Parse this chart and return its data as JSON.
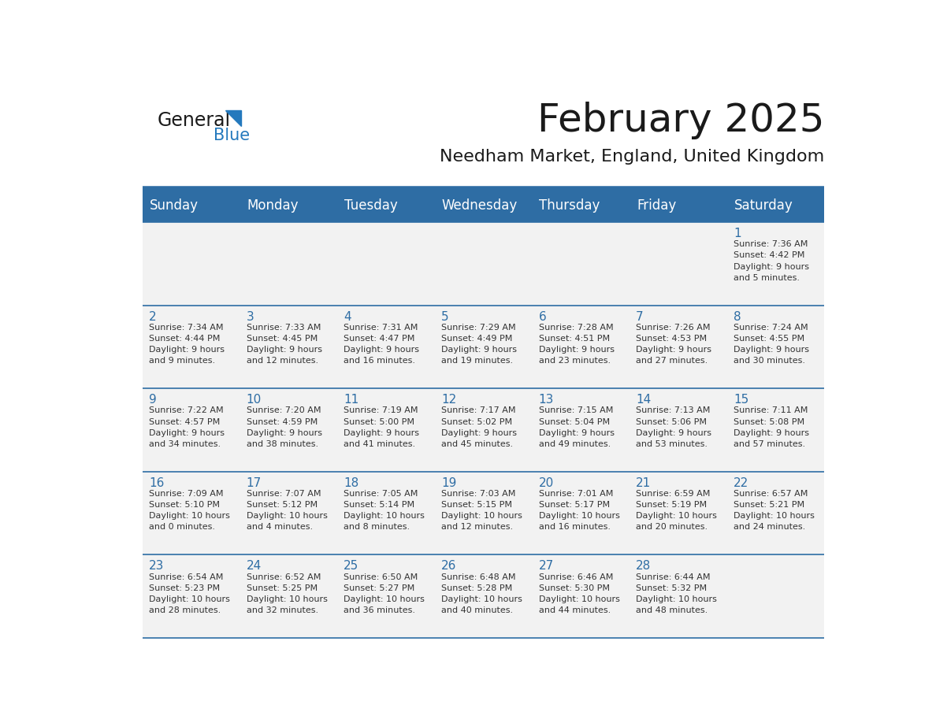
{
  "title": "February 2025",
  "subtitle": "Needham Market, England, United Kingdom",
  "days_of_week": [
    "Sunday",
    "Monday",
    "Tuesday",
    "Wednesday",
    "Thursday",
    "Friday",
    "Saturday"
  ],
  "header_bg": "#2E6DA4",
  "header_text": "#FFFFFF",
  "cell_bg_light": "#F2F2F2",
  "line_color": "#2E6DA4",
  "day_num_color": "#2E6DA4",
  "cell_text_color": "#333333",
  "logo_general_color": "#1a1a1a",
  "logo_blue_color": "#2479BD",
  "calendar_data": [
    [
      null,
      null,
      null,
      null,
      null,
      null,
      {
        "day": 1,
        "sunrise": "7:36 AM",
        "sunset": "4:42 PM",
        "daylight": "9 hours and 5 minutes."
      }
    ],
    [
      {
        "day": 2,
        "sunrise": "7:34 AM",
        "sunset": "4:44 PM",
        "daylight": "9 hours and 9 minutes."
      },
      {
        "day": 3,
        "sunrise": "7:33 AM",
        "sunset": "4:45 PM",
        "daylight": "9 hours and 12 minutes."
      },
      {
        "day": 4,
        "sunrise": "7:31 AM",
        "sunset": "4:47 PM",
        "daylight": "9 hours and 16 minutes."
      },
      {
        "day": 5,
        "sunrise": "7:29 AM",
        "sunset": "4:49 PM",
        "daylight": "9 hours and 19 minutes."
      },
      {
        "day": 6,
        "sunrise": "7:28 AM",
        "sunset": "4:51 PM",
        "daylight": "9 hours and 23 minutes."
      },
      {
        "day": 7,
        "sunrise": "7:26 AM",
        "sunset": "4:53 PM",
        "daylight": "9 hours and 27 minutes."
      },
      {
        "day": 8,
        "sunrise": "7:24 AM",
        "sunset": "4:55 PM",
        "daylight": "9 hours and 30 minutes."
      }
    ],
    [
      {
        "day": 9,
        "sunrise": "7:22 AM",
        "sunset": "4:57 PM",
        "daylight": "9 hours and 34 minutes."
      },
      {
        "day": 10,
        "sunrise": "7:20 AM",
        "sunset": "4:59 PM",
        "daylight": "9 hours and 38 minutes."
      },
      {
        "day": 11,
        "sunrise": "7:19 AM",
        "sunset": "5:00 PM",
        "daylight": "9 hours and 41 minutes."
      },
      {
        "day": 12,
        "sunrise": "7:17 AM",
        "sunset": "5:02 PM",
        "daylight": "9 hours and 45 minutes."
      },
      {
        "day": 13,
        "sunrise": "7:15 AM",
        "sunset": "5:04 PM",
        "daylight": "9 hours and 49 minutes."
      },
      {
        "day": 14,
        "sunrise": "7:13 AM",
        "sunset": "5:06 PM",
        "daylight": "9 hours and 53 minutes."
      },
      {
        "day": 15,
        "sunrise": "7:11 AM",
        "sunset": "5:08 PM",
        "daylight": "9 hours and 57 minutes."
      }
    ],
    [
      {
        "day": 16,
        "sunrise": "7:09 AM",
        "sunset": "5:10 PM",
        "daylight": "10 hours and 0 minutes."
      },
      {
        "day": 17,
        "sunrise": "7:07 AM",
        "sunset": "5:12 PM",
        "daylight": "10 hours and 4 minutes."
      },
      {
        "day": 18,
        "sunrise": "7:05 AM",
        "sunset": "5:14 PM",
        "daylight": "10 hours and 8 minutes."
      },
      {
        "day": 19,
        "sunrise": "7:03 AM",
        "sunset": "5:15 PM",
        "daylight": "10 hours and 12 minutes."
      },
      {
        "day": 20,
        "sunrise": "7:01 AM",
        "sunset": "5:17 PM",
        "daylight": "10 hours and 16 minutes."
      },
      {
        "day": 21,
        "sunrise": "6:59 AM",
        "sunset": "5:19 PM",
        "daylight": "10 hours and 20 minutes."
      },
      {
        "day": 22,
        "sunrise": "6:57 AM",
        "sunset": "5:21 PM",
        "daylight": "10 hours and 24 minutes."
      }
    ],
    [
      {
        "day": 23,
        "sunrise": "6:54 AM",
        "sunset": "5:23 PM",
        "daylight": "10 hours and 28 minutes."
      },
      {
        "day": 24,
        "sunrise": "6:52 AM",
        "sunset": "5:25 PM",
        "daylight": "10 hours and 32 minutes."
      },
      {
        "day": 25,
        "sunrise": "6:50 AM",
        "sunset": "5:27 PM",
        "daylight": "10 hours and 36 minutes."
      },
      {
        "day": 26,
        "sunrise": "6:48 AM",
        "sunset": "5:28 PM",
        "daylight": "10 hours and 40 minutes."
      },
      {
        "day": 27,
        "sunrise": "6:46 AM",
        "sunset": "5:30 PM",
        "daylight": "10 hours and 44 minutes."
      },
      {
        "day": 28,
        "sunrise": "6:44 AM",
        "sunset": "5:32 PM",
        "daylight": "10 hours and 48 minutes."
      },
      null
    ]
  ]
}
